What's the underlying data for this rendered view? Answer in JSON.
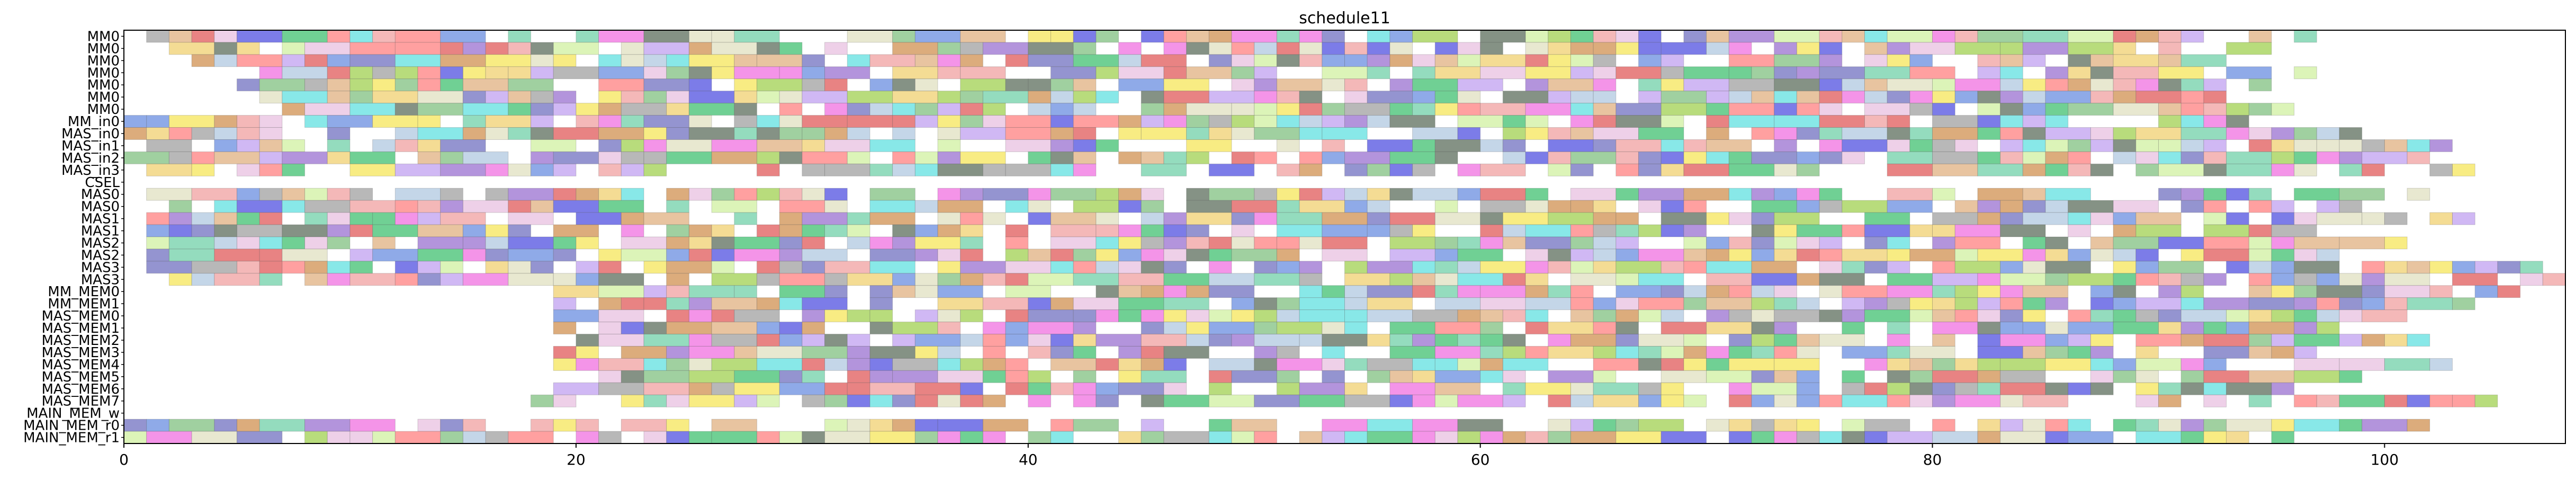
{
  "chart_data": {
    "type": "gantt",
    "title": "schedule11",
    "xlabel": "",
    "ylabel": "",
    "xlim": [
      0,
      108
    ],
    "x_ticks": [
      0,
      20,
      40,
      60,
      80,
      100
    ],
    "grid": false,
    "legend": "none",
    "rows": [
      "MM0",
      "MM0",
      "MM0",
      "MM0",
      "MM0",
      "MM0",
      "MM0",
      "MM_in0",
      "MAS_in0",
      "MAS_in1",
      "MAS_in2",
      "MAS_in3",
      "CSEL",
      "MAS0",
      "MAS0",
      "MAS1",
      "MAS1",
      "MAS2",
      "MAS2",
      "MAS3",
      "MAS3",
      "MM_MEM0",
      "MM_MEM1",
      "MAS_MEM0",
      "MAS_MEM1",
      "MAS_MEM2",
      "MAS_MEM3",
      "MAS_MEM4",
      "MAS_MEM5",
      "MAS_MEM6",
      "MAS_MEM7",
      "MAIN_MEM_w",
      "MAIN_MEM_r0",
      "MAIN_MEM_r1"
    ],
    "rows_active": [
      [
        1,
        97
      ],
      [
        2,
        95
      ],
      [
        3,
        93
      ],
      [
        4,
        97
      ],
      [
        5,
        95
      ],
      [
        6,
        93
      ],
      [
        7,
        96
      ],
      [
        0,
        94
      ],
      [
        0,
        99
      ],
      [
        0,
        103
      ],
      [
        0,
        102
      ],
      [
        0,
        105
      ],
      null,
      [
        1,
        102
      ],
      [
        1,
        99
      ],
      [
        1,
        104
      ],
      [
        1,
        97
      ],
      [
        1,
        101
      ],
      [
        1,
        98
      ],
      [
        1,
        107
      ],
      [
        2,
        108
      ],
      [
        19,
        106
      ],
      [
        19,
        104
      ],
      [
        19,
        101
      ],
      [
        19,
        98
      ],
      [
        20,
        102
      ],
      [
        19,
        97
      ],
      [
        19,
        103
      ],
      [
        20,
        99
      ],
      [
        19,
        96
      ],
      [
        18,
        105
      ],
      null,
      [
        0,
        102
      ],
      [
        0,
        96
      ]
    ],
    "segment_length": 1.0,
    "palette": [
      "#6a8ee0",
      "#e05a5a",
      "#b0c8e0",
      "#5c6e5c",
      "#f0d070",
      "#9a70d0",
      "#70d0a8",
      "#f5e65a",
      "#e8c0e0",
      "#d0f0a0",
      "#f070e0",
      "#a0d050",
      "#f0a0a0",
      "#60e0e0",
      "#c0a0f0",
      "#80c080",
      "#e0b080",
      "#5050e0",
      "#ff8080",
      "#a0a0a0",
      "#7070c0",
      "#e0e0c0",
      "#40c070",
      "#d09050"
    ],
    "seed": 11
  }
}
